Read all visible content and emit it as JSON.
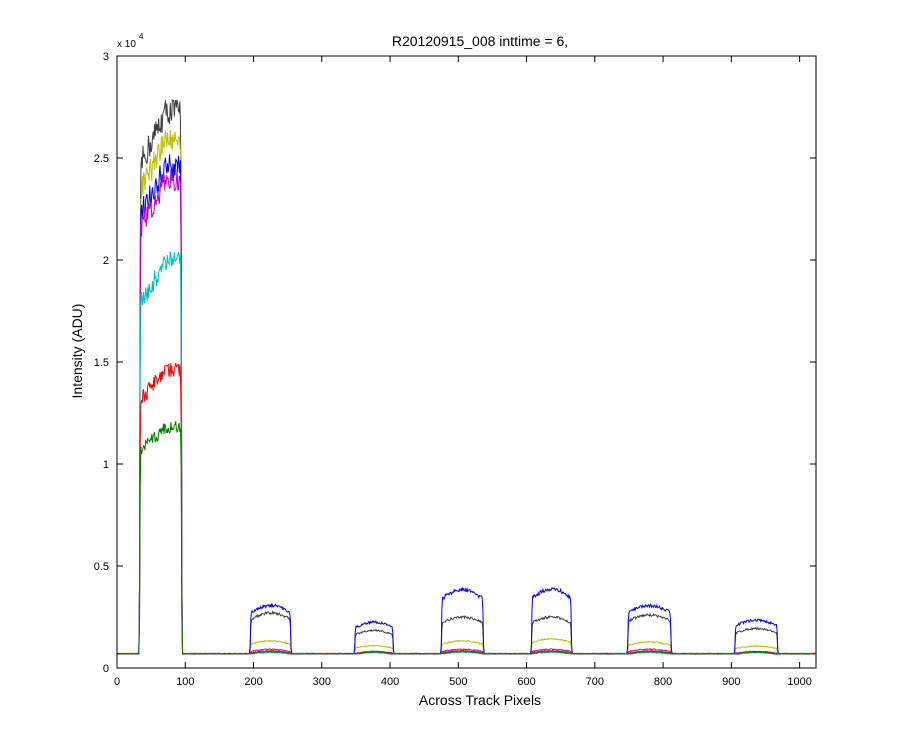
{
  "chart_data": {
    "type": "line",
    "title": "R20120915_008 inttime = 6,",
    "xlabel": "Across Track Pixels",
    "ylabel": "Intensity (ADU)",
    "y_multiplier_base": "x 10",
    "y_multiplier_exp": "4",
    "xlim": [
      0,
      1024
    ],
    "ylim": [
      0,
      30000
    ],
    "xticks": [
      0,
      100,
      200,
      300,
      400,
      500,
      600,
      700,
      800,
      900,
      1000
    ],
    "yticks": [
      0,
      5000,
      10000,
      15000,
      20000,
      25000,
      30000
    ],
    "ytick_labels": [
      "0",
      "0.5",
      "1",
      "1.5",
      "2",
      "2.5",
      "3"
    ],
    "grid": false,
    "baseline": 700,
    "peaks": [
      {
        "start": 33,
        "end": 95
      },
      {
        "start": 195,
        "end": 255
      },
      {
        "start": 348,
        "end": 405
      },
      {
        "start": 475,
        "end": 537
      },
      {
        "start": 607,
        "end": 666
      },
      {
        "start": 748,
        "end": 812
      },
      {
        "start": 905,
        "end": 968
      }
    ],
    "series": [
      {
        "color": "#404040",
        "levels": [
          27300,
          2650,
          1800,
          2450,
          2450,
          2550,
          1900
        ]
      },
      {
        "color": "#bfbf00",
        "levels": [
          25900,
          1300,
          1080,
          1300,
          1400,
          1250,
          1050
        ]
      },
      {
        "color": "#0000ff",
        "levels": [
          24600,
          3000,
          2200,
          3750,
          3800,
          3000,
          2300
        ]
      },
      {
        "color": "#bf00bf",
        "levels": [
          23900,
          900,
          800,
          900,
          900,
          900,
          800
        ]
      },
      {
        "color": "#00bfbf",
        "levels": [
          19900,
          750,
          740,
          760,
          760,
          750,
          740
        ]
      },
      {
        "color": "#ff0000",
        "levels": [
          14600,
          820,
          780,
          830,
          830,
          820,
          780
        ]
      },
      {
        "color": "#008000",
        "levels": [
          11800,
          780,
          760,
          790,
          790,
          780,
          760
        ]
      }
    ]
  }
}
